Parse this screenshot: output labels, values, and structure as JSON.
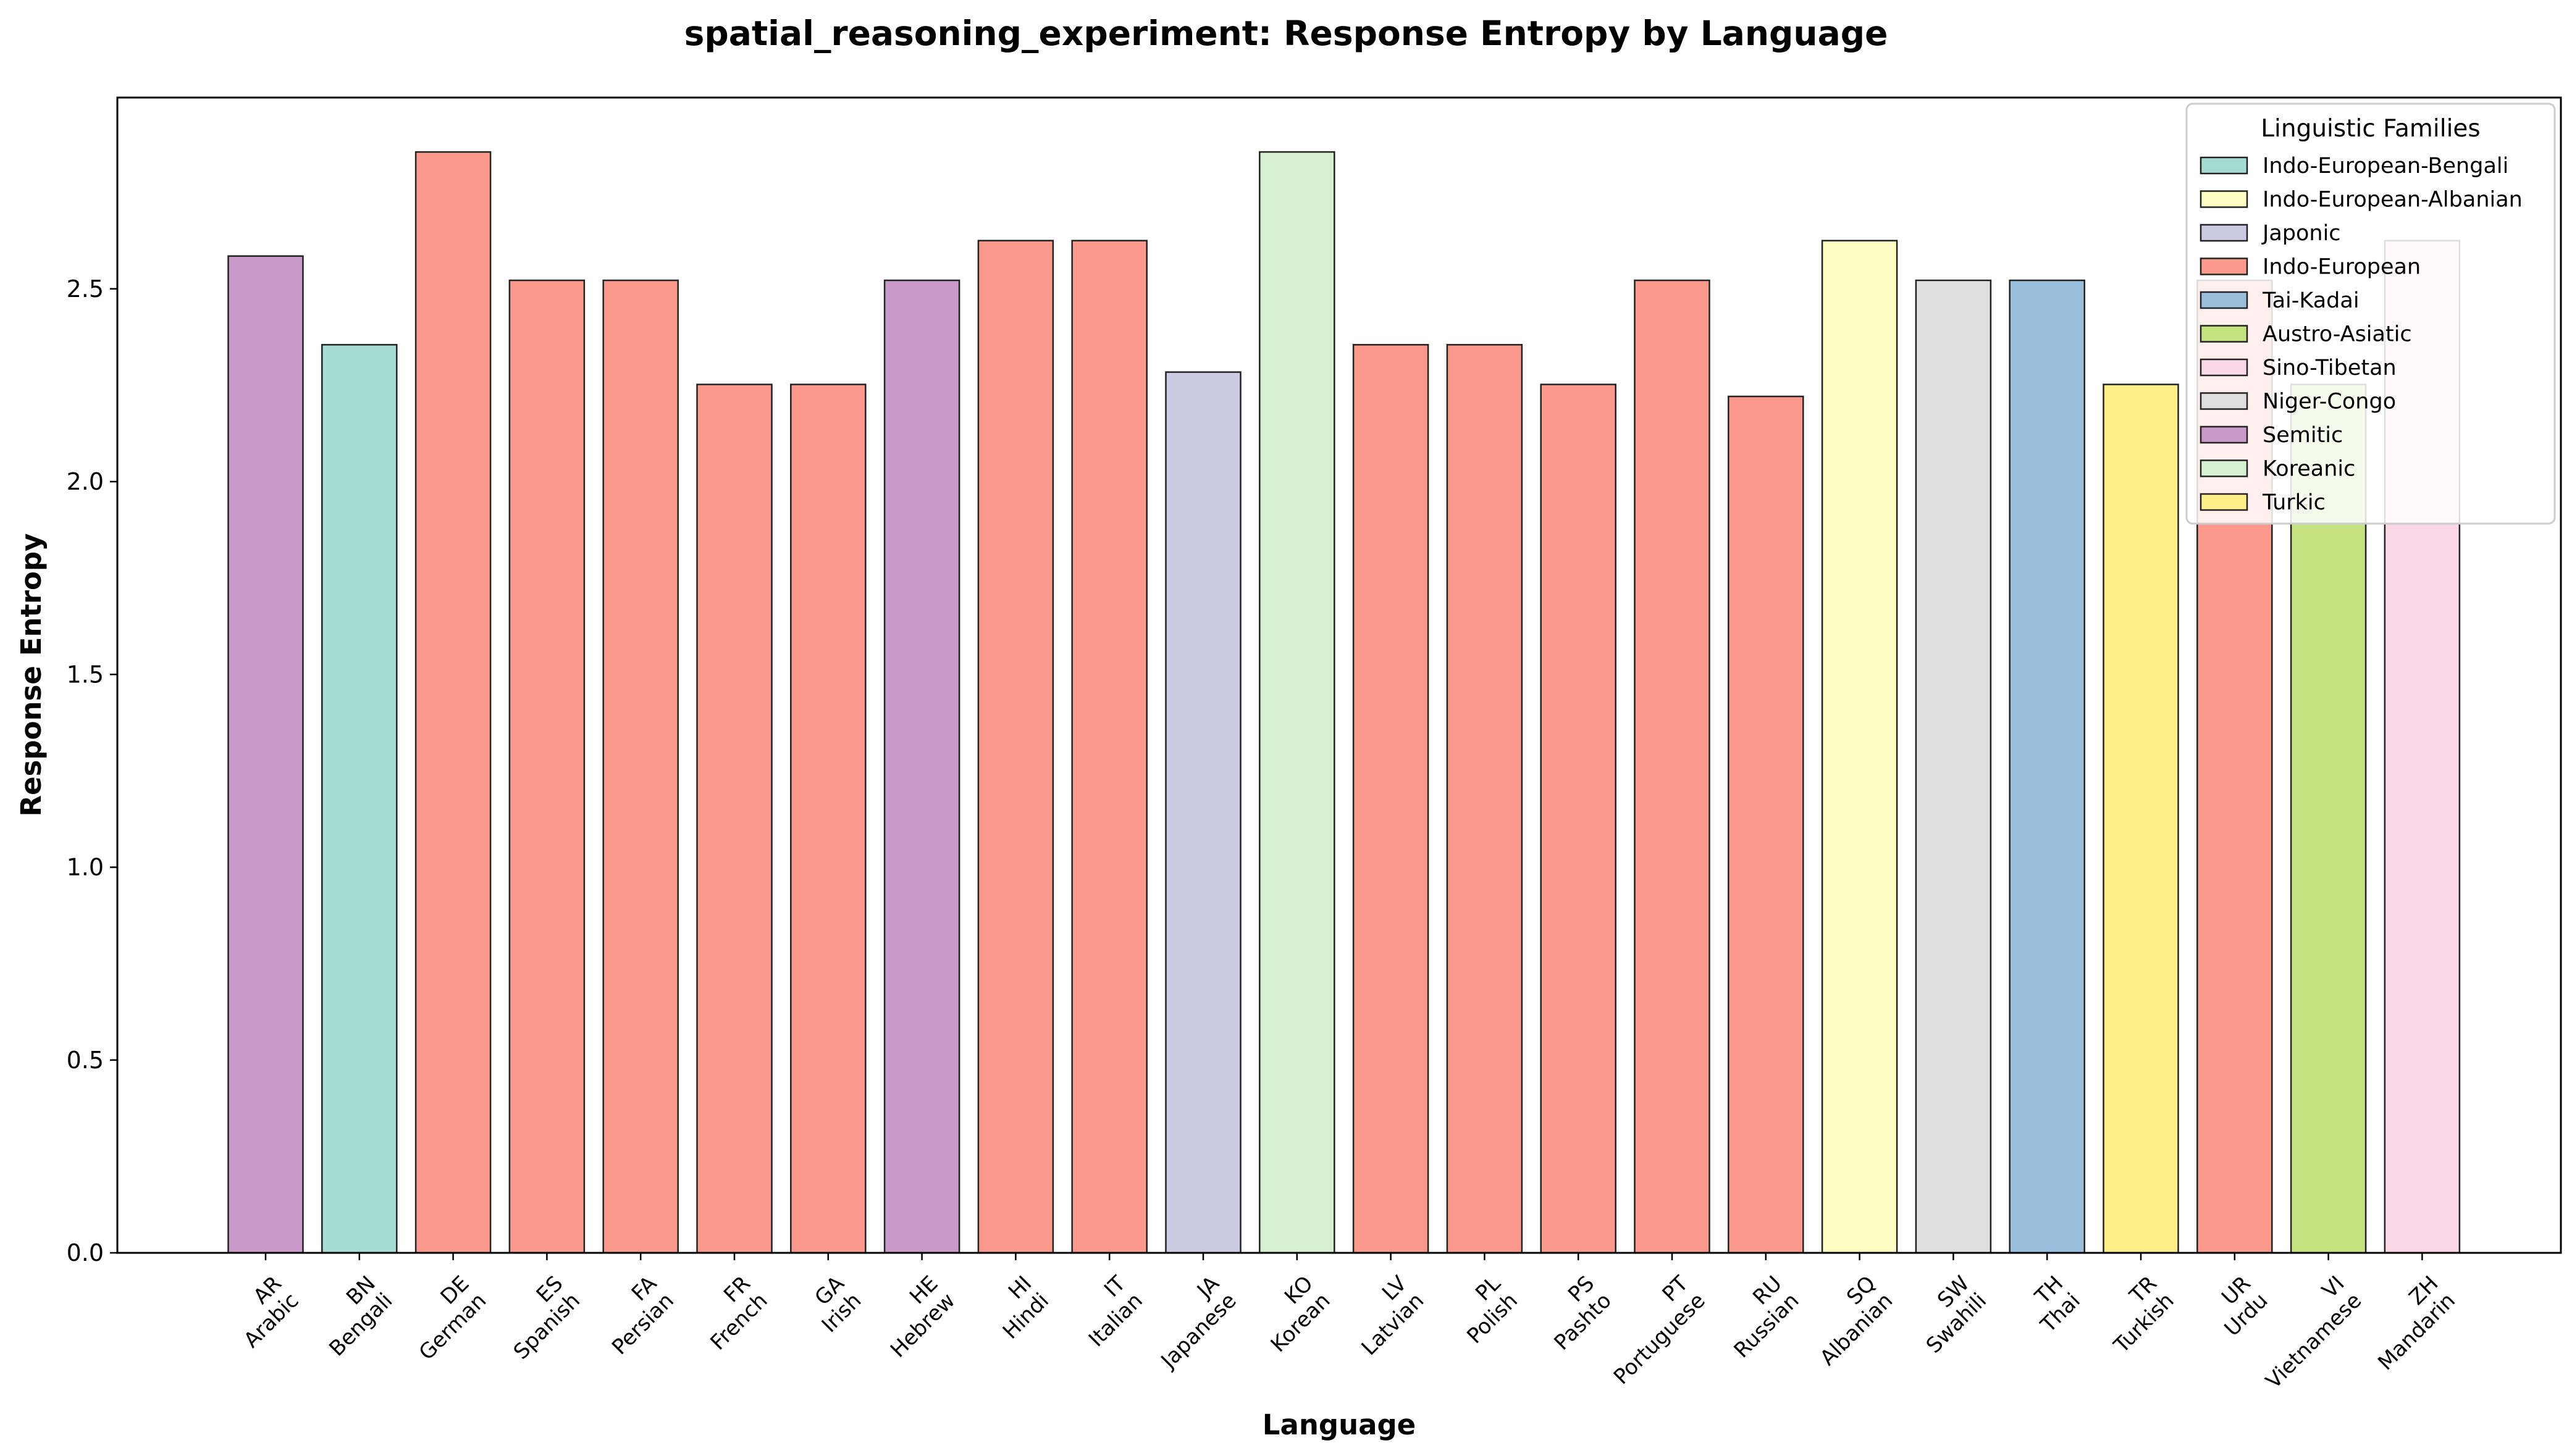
{
  "chart_data": {
    "type": "bar",
    "title": "spatial_reasoning_experiment: Response Entropy by Language",
    "xlabel": "Language",
    "ylabel": "Response Entropy",
    "ylim": [
      0,
      2.996
    ],
    "yticks": [
      "0.0",
      "0.5",
      "1.0",
      "1.5",
      "2.0",
      "2.5"
    ],
    "legend": {
      "title": "Linguistic Families",
      "placement": "top-right",
      "entries": [
        {
          "name": "Indo-European-Bengali",
          "color": "#a6dcd3"
        },
        {
          "name": "Indo-European-Albanian",
          "color": "#ffffc3"
        },
        {
          "name": "Japonic",
          "color": "#ccc9e2"
        },
        {
          "name": "Indo-European",
          "color": "#fb998d"
        },
        {
          "name": "Tai-Kadai",
          "color": "#9abfdc"
        },
        {
          "name": "Austro-Asiatic",
          "color": "#c4e380"
        },
        {
          "name": "Sino-Tibetan",
          "color": "#fad6e7"
        },
        {
          "name": "Niger-Congo",
          "color": "#dedede"
        },
        {
          "name": "Semitic",
          "color": "#c999c9"
        },
        {
          "name": "Koreanic",
          "color": "#d6efd0"
        },
        {
          "name": "Turkic",
          "color": "#ffee8a"
        }
      ]
    },
    "bars": [
      {
        "code": "AR",
        "name": "Arabic",
        "value": 2.585,
        "color": "#c999c9"
      },
      {
        "code": "BN",
        "name": "Bengali",
        "value": 2.355,
        "color": "#a6dcd3"
      },
      {
        "code": "DE",
        "name": "German",
        "value": 2.855,
        "color": "#fb998d"
      },
      {
        "code": "ES",
        "name": "Spanish",
        "value": 2.522,
        "color": "#fb998d"
      },
      {
        "code": "FA",
        "name": "Persian",
        "value": 2.522,
        "color": "#fb998d"
      },
      {
        "code": "FR",
        "name": "French",
        "value": 2.252,
        "color": "#fb998d"
      },
      {
        "code": "GA",
        "name": "Irish",
        "value": 2.252,
        "color": "#fb998d"
      },
      {
        "code": "HE",
        "name": "Hebrew",
        "value": 2.522,
        "color": "#c999c9"
      },
      {
        "code": "HI",
        "name": "Hindi",
        "value": 2.625,
        "color": "#fb998d"
      },
      {
        "code": "IT",
        "name": "Italian",
        "value": 2.625,
        "color": "#fb998d"
      },
      {
        "code": "JA",
        "name": "Japanese",
        "value": 2.284,
        "color": "#ccc9e2"
      },
      {
        "code": "KO",
        "name": "Korean",
        "value": 2.855,
        "color": "#d6efd0"
      },
      {
        "code": "LV",
        "name": "Latvian",
        "value": 2.355,
        "color": "#fb998d"
      },
      {
        "code": "PL",
        "name": "Polish",
        "value": 2.355,
        "color": "#fb998d"
      },
      {
        "code": "PS",
        "name": "Pashto",
        "value": 2.252,
        "color": "#fb998d"
      },
      {
        "code": "PT",
        "name": "Portuguese",
        "value": 2.522,
        "color": "#fb998d"
      },
      {
        "code": "RU",
        "name": "Russian",
        "value": 2.221,
        "color": "#fb998d"
      },
      {
        "code": "SQ",
        "name": "Albanian",
        "value": 2.625,
        "color": "#ffffc3"
      },
      {
        "code": "SW",
        "name": "Swahili",
        "value": 2.522,
        "color": "#dedede"
      },
      {
        "code": "TH",
        "name": "Thai",
        "value": 2.522,
        "color": "#9abfdc"
      },
      {
        "code": "TR",
        "name": "Turkish",
        "value": 2.252,
        "color": "#ffee8a"
      },
      {
        "code": "UR",
        "name": "Urdu",
        "value": 2.522,
        "color": "#fb998d"
      },
      {
        "code": "VI",
        "name": "Vietnamese",
        "value": 2.252,
        "color": "#c4e380"
      },
      {
        "code": "ZH",
        "name": "Mandarin",
        "value": 2.625,
        "color": "#fad6e7"
      }
    ]
  }
}
